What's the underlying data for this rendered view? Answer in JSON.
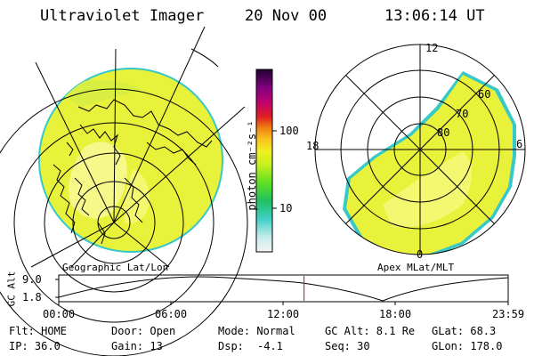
{
  "header": {
    "instrument": "Ultraviolet Imager",
    "date": "20 Nov 00",
    "time": "13:06:14 UT"
  },
  "colorbar": {
    "label": "photon cm⁻²s⁻¹",
    "ticks": [
      "100",
      "10"
    ]
  },
  "panels": {
    "left_label": "Geographic Lat/Lon",
    "right_label": "Apex MLat/MLT"
  },
  "polar": {
    "mlt_labels": [
      "12",
      "18",
      "6",
      "0"
    ],
    "lat_labels": [
      "60",
      "70",
      "80"
    ]
  },
  "orbit": {
    "ylabel": "GC Alt",
    "y_ticks": [
      "9.0",
      "1.8"
    ],
    "x_ticks": [
      "00:00",
      "06:00",
      "12:00",
      "18:00",
      "23:59"
    ],
    "current_hour": 13.1
  },
  "status": {
    "flt": "Flt: HOME",
    "ip": "IP: 36.0",
    "door": "Door: Open",
    "gain": "Gain: 13",
    "mode": "Mode: Normal",
    "dsp": "Dsp:",
    "dsp_val": "-4.1",
    "gc_alt": "GC Alt: 8.1 Re",
    "seq": "Seq: 30",
    "glat": "GLat:  68.3",
    "glon": "GLon: 178.0"
  },
  "colors": {
    "fill": "#e8f23a",
    "edge": "#38c8c8",
    "marker": "#e00000"
  }
}
